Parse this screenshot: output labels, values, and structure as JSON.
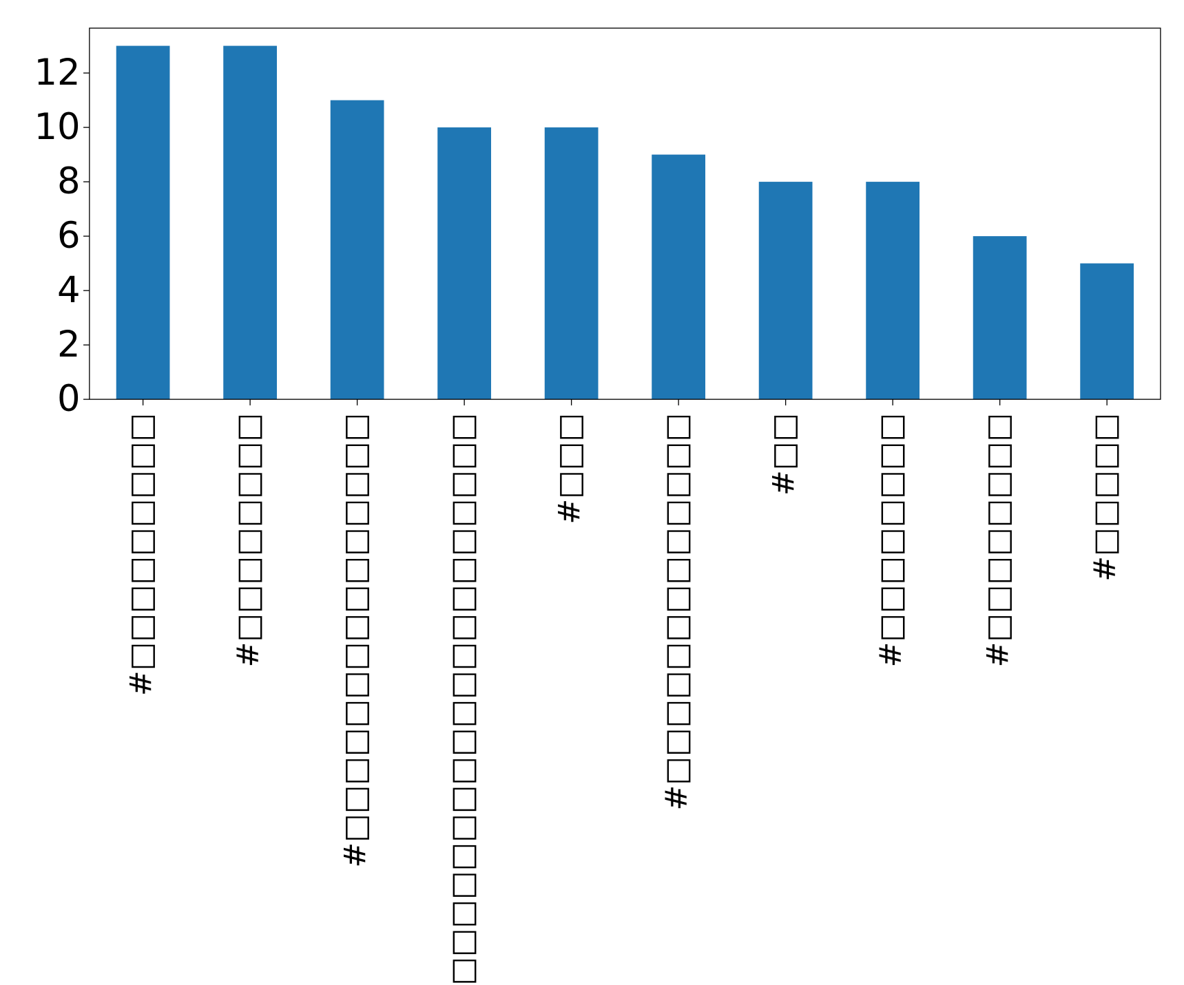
{
  "chart_data": {
    "type": "bar",
    "categories": [
      "#□□□□□□□□□",
      "#□□□□□□□□",
      "#□□□□□□□□□□□□□□□",
      "#□□□□□□□□□□□□□□□□□□□□",
      "#□□□",
      "#□□□□□□□□□□□□□",
      "#□□",
      "#□□□□□□□□",
      "#□□□□□□□□",
      "#□□□□□"
    ],
    "values": [
      13,
      13,
      11,
      10,
      10,
      9,
      8,
      8,
      6,
      5
    ],
    "color": "#1f77b4",
    "ylim": [
      0,
      13.65
    ],
    "yticks": [
      0,
      2,
      4,
      6,
      8,
      10,
      12
    ],
    "grid": false
  }
}
